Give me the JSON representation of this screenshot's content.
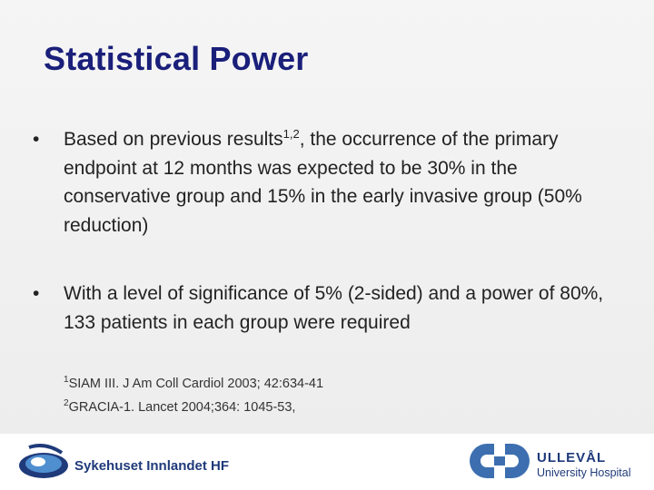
{
  "slide": {
    "title": "Statistical Power",
    "bullets": [
      {
        "pre": "Based on previous results",
        "sup": "1,2",
        "post": ", the occurrence of  the primary endpoint at 12 months was expected to be 30% in the conservative group and 15% in the early invasive group (50% reduction)"
      },
      {
        "text": "With a level of significance of 5% (2-sided) and a power of 80%, 133 patients in each group were required"
      }
    ],
    "bullet_glyph": "•",
    "references": [
      {
        "marker": "1",
        "text": "SIAM III. J Am Coll Cardiol 2003; 42:634-41"
      },
      {
        "marker": "2",
        "text": "GRACIA-1. Lancet 2004;364: 1045-53,"
      }
    ]
  },
  "footer": {
    "left_logo_text": "Sykehuset Innlandet HF",
    "right_logo_name": "ULLEVÅL",
    "right_logo_sub": "University Hospital",
    "colors": {
      "left_logo": "#1f3a7a",
      "right_logo": "#3d6fb0"
    }
  },
  "colors": {
    "title": "#1a1f7a",
    "body_text": "#222222",
    "background": "#f2f2f2"
  }
}
